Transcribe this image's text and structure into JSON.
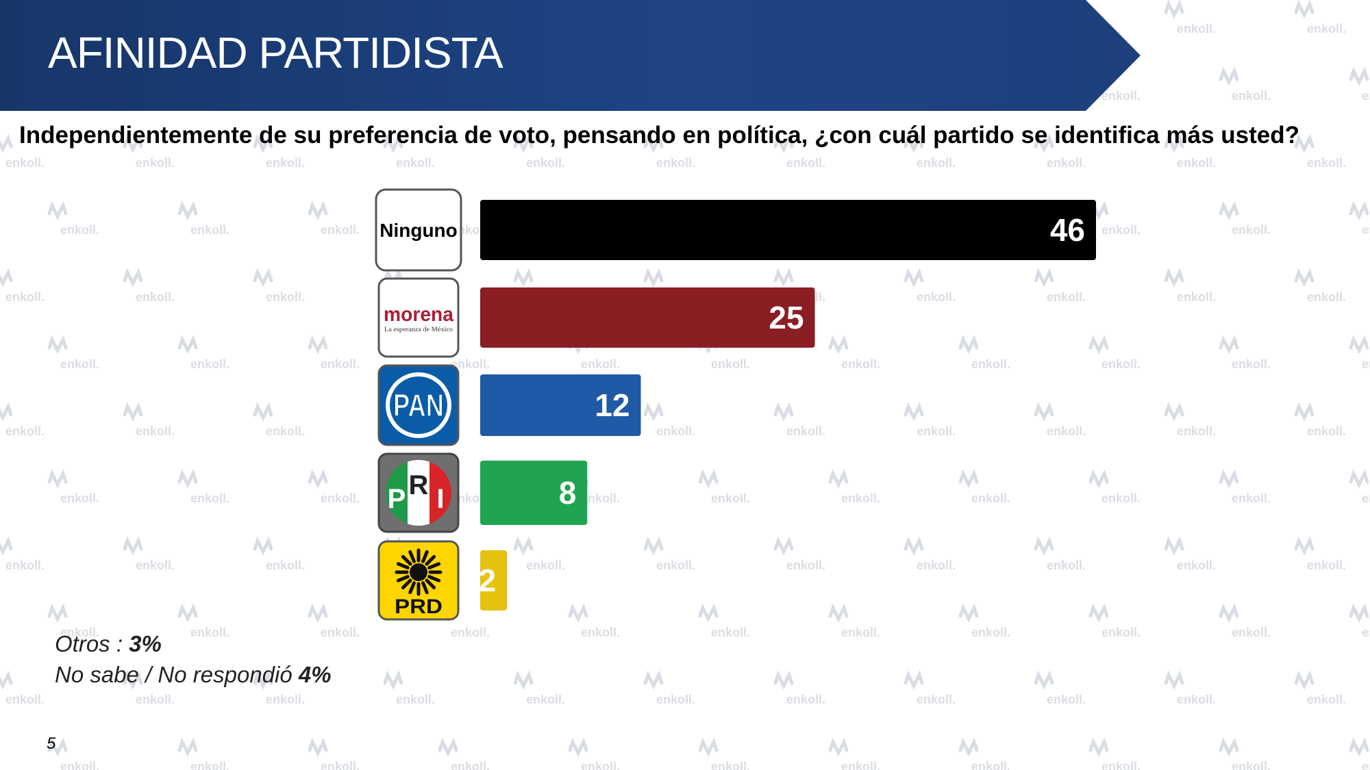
{
  "header": {
    "title": "AFINIDAD PARTIDISTA"
  },
  "question": "Independientemente de su preferencia de voto, pensando en política, ¿con cuál partido se identifica más usted?",
  "chart_data": {
    "type": "bar",
    "orientation": "horizontal",
    "categories": [
      "Ninguno",
      "Morena",
      "PAN",
      "PRI",
      "PRD"
    ],
    "values": [
      46,
      25,
      12,
      8,
      2
    ],
    "colors": [
      "#000000",
      "#8b1e23",
      "#1f5aa6",
      "#21a452",
      "#e7c10f"
    ],
    "data_labels": [
      "46",
      "25",
      "12",
      "8",
      "2"
    ],
    "logos": {
      "Ninguno": {
        "text": "Ninguno"
      },
      "Morena": {
        "wordmark": "morena",
        "tagline": "La esperanza de México"
      },
      "PAN": {
        "wordmark": "PAN"
      },
      "PRI": {
        "wordmark": [
          "P",
          "R",
          "I"
        ]
      },
      "PRD": {
        "wordmark": "PRD"
      }
    }
  },
  "notes": {
    "otros_label": "Otros : ",
    "otros_value": "3%",
    "nosabe_label": "No sabe / No respondió ",
    "nosabe_value": "4%"
  },
  "watermark": "enkoll.",
  "page_number": "5"
}
